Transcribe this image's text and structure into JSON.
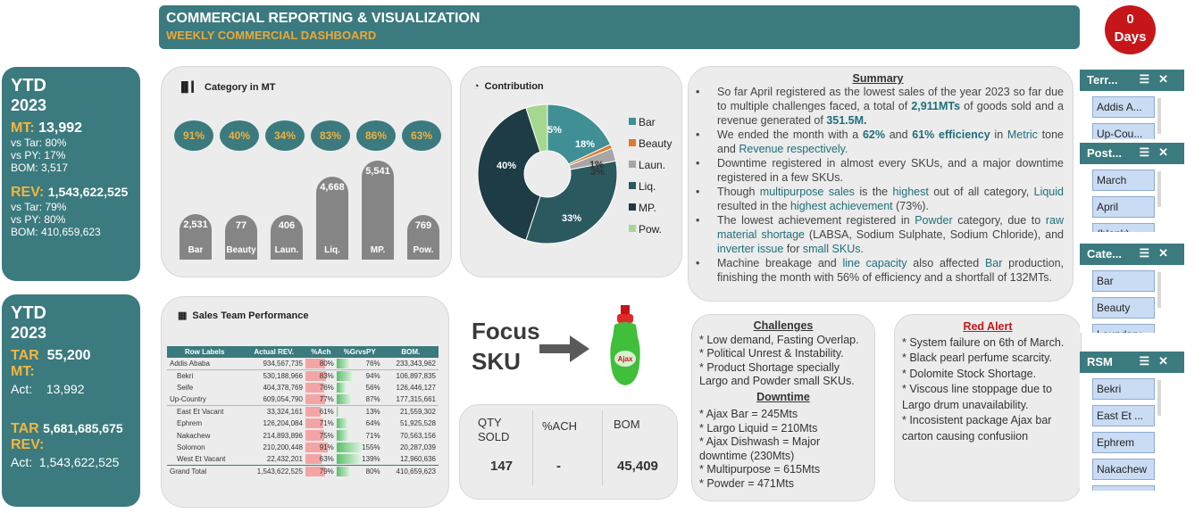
{
  "header": {
    "title": "COMMERCIAL REPORTING & VISUALIZATION",
    "subtitle": "WEEKLY COMMERCIAL DASHBOARD"
  },
  "days_badge": {
    "value": "0",
    "label": "Days"
  },
  "ytd_top": {
    "title": "YTD",
    "year": "2023",
    "mt_label": "MT:",
    "mt_value": "13,992",
    "mt_vs_tar": "vs Tar:  80%",
    "mt_vs_py": "vs PY:   17%",
    "mt_bom": "BOM:   3,517",
    "rev_label": "REV:",
    "rev_value": "1,543,622,525",
    "rev_vs_tar": "vs Tar:  79%",
    "rev_vs_py": "vs PY:   80%",
    "rev_bom": "BOM:    410,659,623"
  },
  "ytd_bottom": {
    "title": "YTD",
    "year": "2023",
    "tar_mt_label": "TAR",
    "tar_mt_label2": "MT:",
    "tar_mt_value": "55,200",
    "act_mt_label": "Act:",
    "act_mt_value": "13,992",
    "tar_rev_label": "TAR",
    "tar_rev_label2": "REV:",
    "tar_rev_value": "5,681,685,675",
    "act_rev_label": "Act:",
    "act_rev_value": "1,543,622,525"
  },
  "category_panel": {
    "title": "Category in MT",
    "icon": "bar-chart-icon"
  },
  "chart_data": [
    {
      "type": "bar",
      "title": "Category in MT",
      "categories": [
        "Bar",
        "Beauty",
        "Laun.",
        "Liq.",
        "MP.",
        "Pow."
      ],
      "values": [
        2531,
        77,
        406,
        4668,
        5541,
        769
      ],
      "value_labels": [
        "2,531",
        "77",
        "406",
        "4,668",
        "5,541",
        "769"
      ],
      "achievement": [
        "91%",
        "40%",
        "34%",
        "83%",
        "86%",
        "63%"
      ],
      "ylim": [
        0,
        6000
      ]
    },
    {
      "type": "pie",
      "title": "Contribution",
      "categories": [
        "Bar",
        "Beauty",
        "Laun.",
        "Liq.",
        "MP.",
        "Pow."
      ],
      "values": [
        18,
        1,
        3,
        33,
        40,
        5
      ],
      "labels": [
        "18%",
        "1%",
        "3%",
        "33%",
        "40%",
        "5%"
      ],
      "colors": [
        "#3f8f95",
        "#e07a2e",
        "#a6a6a6",
        "#2a5960",
        "#1e3c45",
        "#a5d88e"
      ],
      "legend": "right"
    }
  ],
  "contribution_panel": {
    "title": "Contribution",
    "icon": "pie-chart-icon"
  },
  "summary": {
    "title": "Summary",
    "b1a": "So far April registered as the lowest sales of the year 2023 so far due to multiple challenges faced, a total of ",
    "b1b": "2,911MTs",
    "b1c": " of goods sold and a revenue generated of ",
    "b1d": "351.5M.",
    "b2a": "We ended the month with a ",
    "b2b": "62%",
    "b2c": " and ",
    "b2d": "61% efficiency",
    "b2e": " in ",
    "b2f": "Metric",
    "b2g": " tone and ",
    "b2h": "Revenue respectively.",
    "b3": "Downtime registered in almost every SKUs, and a major downtime registered in a few SKUs.",
    "b4a": "Though ",
    "b4b": "multipurpose sales",
    "b4c": " is the ",
    "b4d": "highest",
    "b4e": " out of all category, ",
    "b4f": "Liquid",
    "b4g": " resulted in the ",
    "b4h": "highest achievement",
    "b4i": " (73%).",
    "b5a": "The lowest achievement registered  in ",
    "b5b": "Powder",
    "b5c": " category, due to ",
    "b5d": "raw material shortage",
    "b5e": " (LABSA, Sodium Sulphate, Sodium Chloride), and ",
    "b5f": "inverter issue",
    "b5g": " for ",
    "b5h": "small SKUs.",
    "b6a": "Machine breakage and ",
    "b6b": "line capacity",
    "b6c": " also affected ",
    "b6d": "Bar",
    "b6e": " production, finishing the month with 56% of efficiency and a shortfall of 132MTs."
  },
  "sales_team": {
    "title": "Sales Team Performance",
    "icon": "table-icon",
    "columns": [
      "Row Labels",
      "Actual REV.",
      "%Ach",
      "%GrvsPY",
      "BOM."
    ],
    "rows": [
      {
        "label": "Addis Ababa",
        "rev": "934,567,735",
        "ach": "80%",
        "ach_v": 80,
        "py": "76%",
        "py_v": 76,
        "bom": "233,343,962",
        "indent": 0
      },
      {
        "label": "Bekri",
        "rev": "530,188,966",
        "ach": "83%",
        "ach_v": 83,
        "py": "94%",
        "py_v": 94,
        "bom": "106,897,835",
        "indent": 1
      },
      {
        "label": "Seife",
        "rev": "404,378,769",
        "ach": "76%",
        "ach_v": 76,
        "py": "56%",
        "py_v": 56,
        "bom": "126,446,127",
        "indent": 1
      },
      {
        "label": "Up-Country",
        "rev": "609,054,790",
        "ach": "77%",
        "ach_v": 77,
        "py": "87%",
        "py_v": 87,
        "bom": "177,315,661",
        "indent": 0
      },
      {
        "label": "East Et Vacant",
        "rev": "33,324,161",
        "ach": "61%",
        "ach_v": 61,
        "py": "13%",
        "py_v": 13,
        "bom": "21,559,302",
        "indent": 1
      },
      {
        "label": "Ephrem",
        "rev": "126,204,084",
        "ach": "71%",
        "ach_v": 71,
        "py": "64%",
        "py_v": 64,
        "bom": "51,925,528",
        "indent": 1
      },
      {
        "label": "Nakachew",
        "rev": "214,893,896",
        "ach": "75%",
        "ach_v": 75,
        "py": "71%",
        "py_v": 71,
        "bom": "70,563,156",
        "indent": 1
      },
      {
        "label": "Solomon",
        "rev": "210,200,448",
        "ach": "91%",
        "ach_v": 91,
        "py": "155%",
        "py_v": 155,
        "bom": "20,287,039",
        "indent": 1
      },
      {
        "label": "West Et Vacant",
        "rev": "22,432,201",
        "ach": "63%",
        "ach_v": 63,
        "py": "139%",
        "py_v": 139,
        "bom": "12,960,636",
        "indent": 1
      },
      {
        "label": "Grand Total",
        "rev": "1,543,622,525",
        "ach": "79%",
        "ach_v": 79,
        "py": "80%",
        "py_v": 80,
        "bom": "410,659,623",
        "indent": 0
      }
    ]
  },
  "focus_sku": {
    "line1": "Focus",
    "line2": "SKU",
    "product_label": "Ajax"
  },
  "sku_stats": {
    "qty_label": "QTY\nSOLD",
    "qty_value": "147",
    "ach_label": "%ACH",
    "ach_value": "-",
    "bom_label": "BOM",
    "bom_value": "45,409"
  },
  "challenges": {
    "title": "Challenges",
    "items": [
      "* Low demand, Fasting Overlap.",
      "* Political Unrest & Instability.",
      "* Product Shortage specially Largo and Powder small SKUs."
    ],
    "downtime_title": "Downtime",
    "downtime_items": [
      "* Ajax Bar = 245Mts",
      "* Largo Liquid = 210Mts",
      "* Ajax Dishwash = Major downtime (230Mts)",
      "* Multipurpose = 615Mts",
      "* Powder = 471Mts"
    ]
  },
  "red_alert": {
    "title": "Red Alert",
    "items": [
      "* System failure on 6th of March.",
      "* Black pearl perfume scarcity.",
      "* Dolomite Stock Shortage.",
      "* Viscous line stoppage due to Largo drum unavailability.",
      "* Incosistent package  Ajax bar carton causing confusiion"
    ]
  },
  "slicers": [
    {
      "title": "Terr...",
      "items": [
        "Addis A...",
        "Up-Cou..."
      ]
    },
    {
      "title": "Post...",
      "items": [
        "March",
        "April",
        "(blank)"
      ]
    },
    {
      "title": "Cate...",
      "items": [
        "Bar",
        "Beauty",
        "Laundary"
      ]
    },
    {
      "title": "RSM",
      "items": [
        "Bekri",
        "East Et ...",
        "Ephrem",
        "Nakachew",
        "Seife"
      ]
    }
  ],
  "colors": {
    "teal": "#3b7a7e",
    "gold": "#f2b63f",
    "red": "#c7161a",
    "bar_gray": "#858585"
  }
}
